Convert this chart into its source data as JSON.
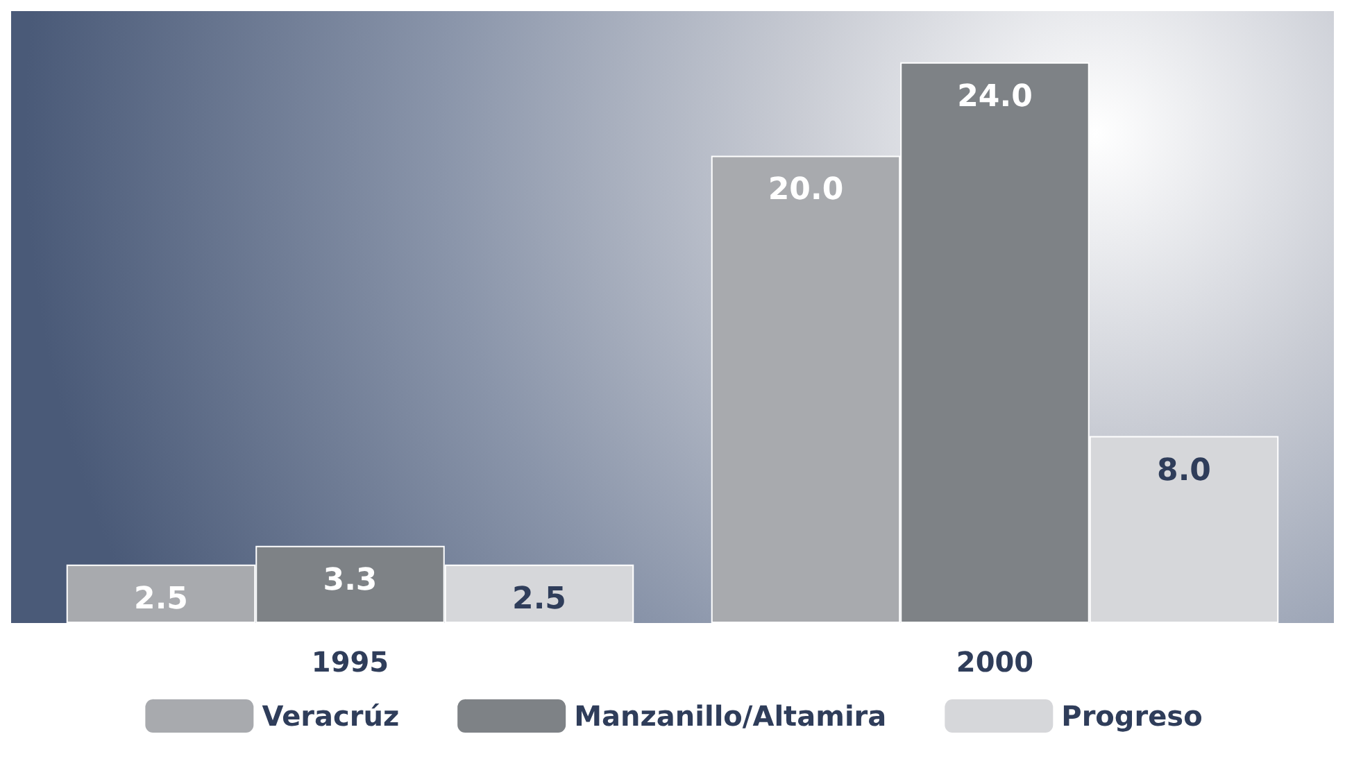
{
  "chart_data": {
    "type": "bar",
    "categories": [
      "1995",
      "2000"
    ],
    "series": [
      {
        "name": "Veracrúz",
        "color": "#a8aaae",
        "values": [
          2.5,
          20.0
        ],
        "value_labels": [
          "2.5",
          "20.0"
        ]
      },
      {
        "name": "Manzanillo/Altamira",
        "color": "#7e8286",
        "values": [
          3.3,
          24.0
        ],
        "value_labels": [
          "3.3",
          "24.0"
        ]
      },
      {
        "name": "Progreso",
        "color": "#d6d7da",
        "values": [
          2.5,
          8.0
        ],
        "value_labels": [
          "2.5",
          "8.0"
        ]
      }
    ],
    "legend": "bottom"
  }
}
